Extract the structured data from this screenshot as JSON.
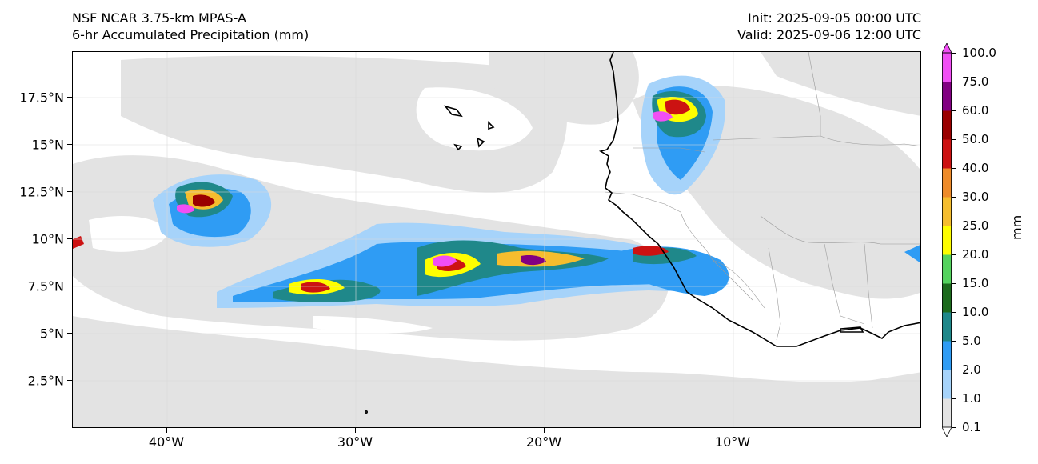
{
  "header": {
    "model": "NSF NCAR 3.75-km MPAS-A",
    "field": "6-hr Accumulated Precipitation (mm)",
    "init": "Init: 2025-09-05 00:00 UTC",
    "valid": "Valid: 2025-09-06 12:00 UTC"
  },
  "axes": {
    "lat_labels": [
      "17.5°N",
      "15°N",
      "12.5°N",
      "10°N",
      "7.5°N",
      "5°N",
      "2.5°N"
    ],
    "lon_labels": [
      "40°W",
      "30°W",
      "20°W",
      "10°W"
    ]
  },
  "colorbar": {
    "units": "mm",
    "levels": [
      "0.1",
      "1.0",
      "2.0",
      "5.0",
      "10.0",
      "15.0",
      "20.0",
      "25.0",
      "30.0",
      "40.0",
      "50.0",
      "60.0",
      "75.0",
      "100.0"
    ],
    "colors": [
      "#e3e3e3",
      "#a6d3fa",
      "#2f9cf4",
      "#1f888a",
      "#1c6b1d",
      "#54d35e",
      "#fefe00",
      "#f5bd2e",
      "#ee8b2a",
      "#cc1212",
      "#9a0000",
      "#820082",
      "#f14ef4"
    ],
    "extend": "both"
  },
  "colors": {
    "land_outline": "#000000",
    "borders": "#9a9a9a",
    "light_precip": "#e3e3e3",
    "gridline": "#d9d9d9"
  }
}
